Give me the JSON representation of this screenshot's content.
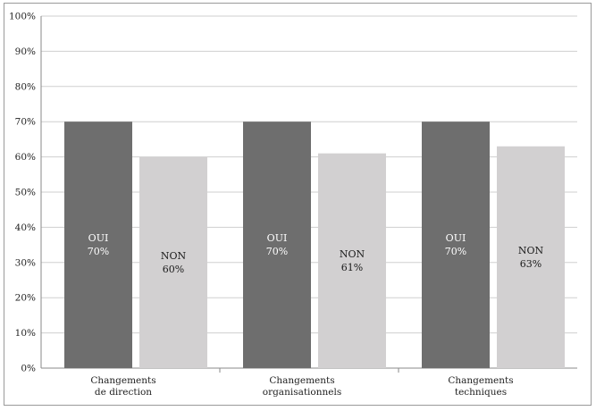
{
  "chart_data": {
    "type": "bar",
    "categories": [
      [
        "Changements",
        "de direction"
      ],
      [
        "Changements",
        "organisationnels"
      ],
      [
        "Changements",
        "techniques"
      ]
    ],
    "series": [
      {
        "label": "OUI",
        "values": [
          70,
          70,
          70
        ],
        "value_labels": [
          "70%",
          "70%",
          "70%"
        ],
        "color": "#6e6e6e",
        "text_color": "#ffffff"
      },
      {
        "label": "NON",
        "values": [
          60,
          61,
          63
        ],
        "value_labels": [
          "60%",
          "61%",
          "63%"
        ],
        "color": "#d2d0d1",
        "text_color": "#1a1a1a"
      }
    ],
    "ylim": [
      0,
      100
    ],
    "yticks": [
      "0%",
      "10%",
      "20%",
      "30%",
      "40%",
      "50%",
      "60%",
      "70%",
      "80%",
      "90%",
      "100%"
    ],
    "grid": true,
    "legend": "none"
  }
}
